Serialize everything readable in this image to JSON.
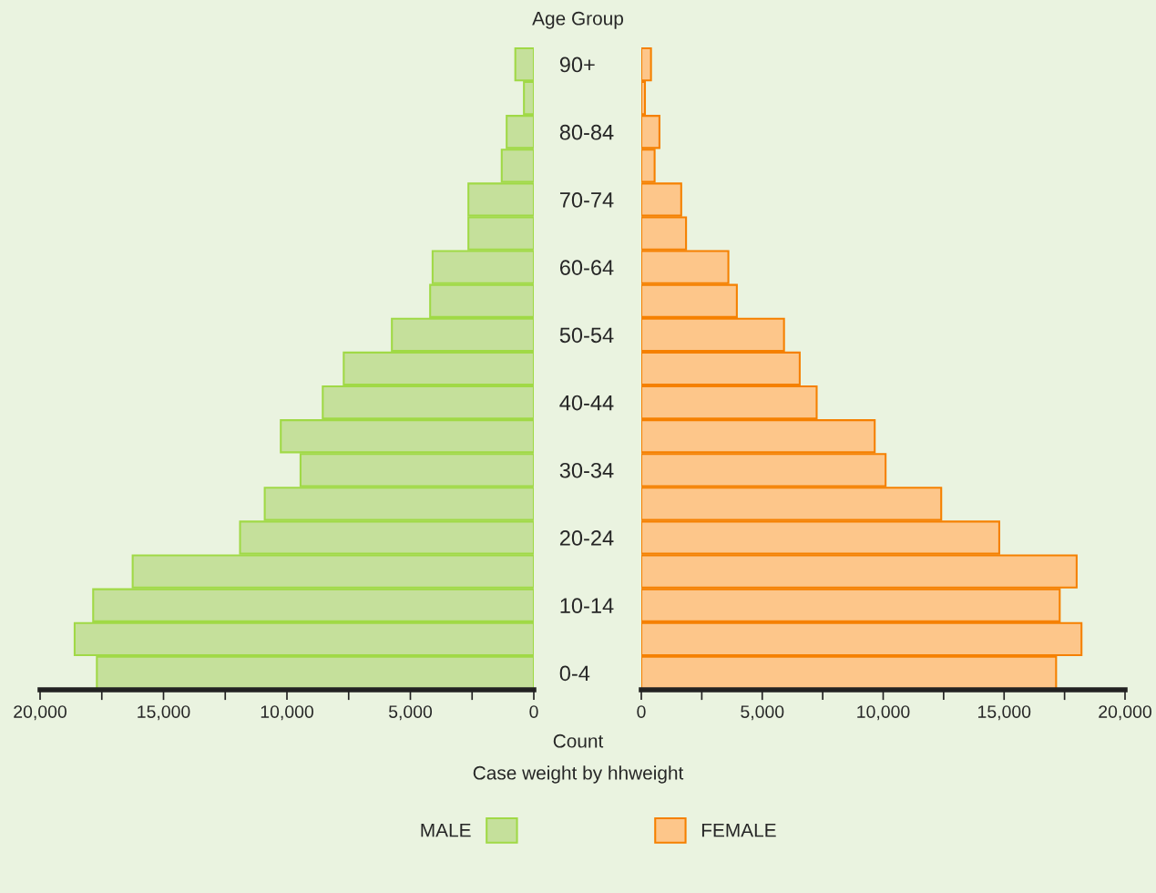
{
  "chart_data": [
    {
      "type": "bar",
      "orientation": "horizontal",
      "title": "Age Group",
      "xlabel": "Count",
      "annotations": [
        "Case weight by hhweight"
      ],
      "categories": [
        "90+",
        null,
        "80-84",
        null,
        "70-74",
        null,
        "60-64",
        null,
        "50-54",
        null,
        "40-44",
        null,
        "30-34",
        null,
        "20-24",
        null,
        "10-14",
        null,
        "0-4"
      ],
      "series": [
        {
          "name": "MALE",
          "color": "#c5e09b",
          "values": [
            750,
            400,
            1100,
            1300,
            2650,
            2650,
            4100,
            4200,
            5750,
            7700,
            8550,
            10250,
            9450,
            10900,
            11900,
            16250,
            17850,
            18600,
            17700
          ]
        }
      ],
      "xlim": [
        20000,
        0
      ],
      "xticks": [
        {
          "value": 20000,
          "label": "20,000"
        },
        {
          "value": 17500,
          "label": null
        },
        {
          "value": 15000,
          "label": "15,000"
        },
        {
          "value": 12500,
          "label": null
        },
        {
          "value": 10000,
          "label": "10,000"
        },
        {
          "value": 7500,
          "label": null
        },
        {
          "value": 5000,
          "label": "5,000"
        },
        {
          "value": 2500,
          "label": null
        },
        0
      ],
      "grid": false,
      "legend": "bottom"
    },
    {
      "type": "bar",
      "orientation": "horizontal",
      "categories": [
        null,
        null,
        null,
        null,
        null,
        null,
        null,
        null,
        null,
        null,
        null,
        null,
        null,
        null,
        null,
        null,
        null,
        null,
        null
      ],
      "series": [
        {
          "name": "FEMALE",
          "color": "#fdc68a",
          "values": [
            400,
            150,
            750,
            550,
            1650,
            1850,
            3600,
            3950,
            5900,
            6550,
            7250,
            9650,
            10100,
            12400,
            14800,
            18000,
            17300,
            18200,
            17150
          ]
        }
      ],
      "xlim": [
        0,
        20000
      ],
      "xticks": [
        0,
        {
          "value": 2500,
          "label": null
        },
        {
          "value": 5000,
          "label": "5,000"
        },
        {
          "value": 7500,
          "label": null
        },
        {
          "value": 10000,
          "label": "10,000"
        },
        {
          "value": 12500,
          "label": null
        },
        {
          "value": 15000,
          "label": "15,000"
        },
        {
          "value": 17500,
          "label": null
        },
        {
          "value": 20000,
          "label": "20,000"
        }
      ],
      "grid": false,
      "legend": "bottom"
    }
  ]
}
